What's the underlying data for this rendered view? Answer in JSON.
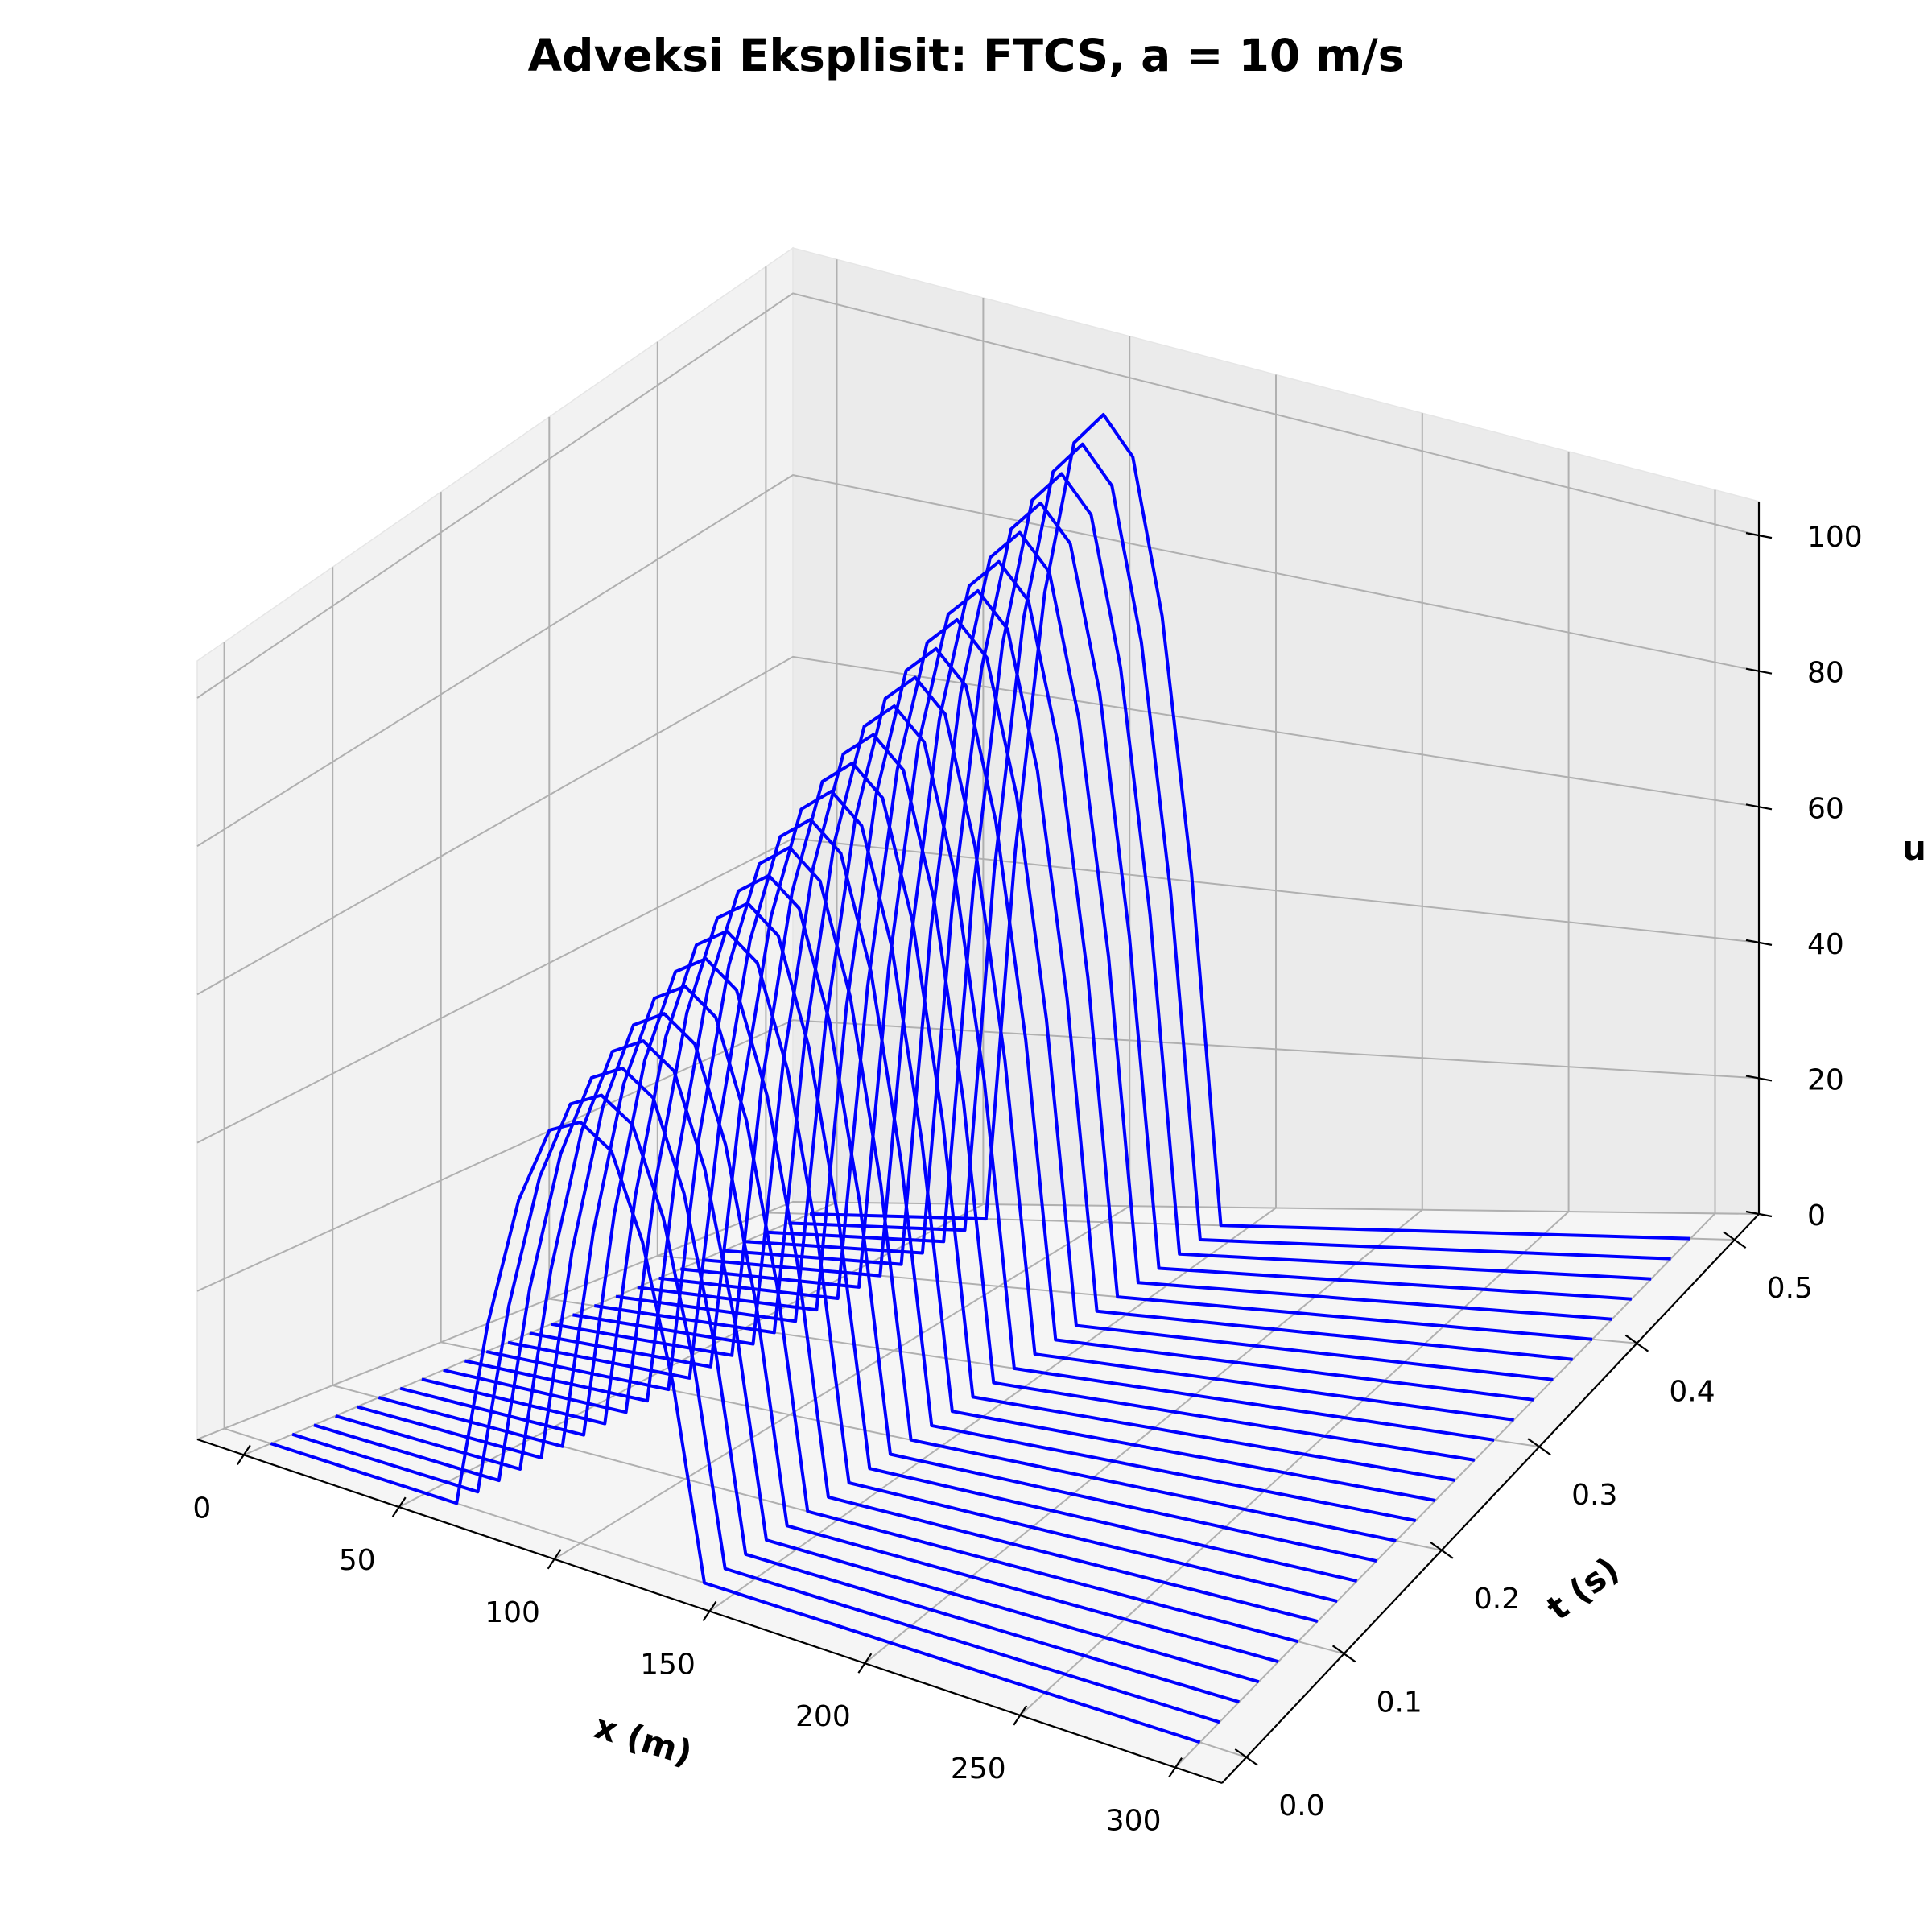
{
  "chart_data": {
    "type": "line",
    "subtype": "3d-waterfall",
    "title": "Adveksi Eksplisit: FTCS, a = 10 m/s",
    "xlabel": "x (m)",
    "ylabel": "t (s)",
    "zlabel": "u",
    "x_ticks": [
      "0",
      "50",
      "100",
      "150",
      "200",
      "250",
      "300"
    ],
    "t_ticks": [
      "0.0",
      "0.1",
      "0.2",
      "0.3",
      "0.4",
      "0.5"
    ],
    "u_ticks": [
      "0",
      "20",
      "40",
      "60",
      "80",
      "100"
    ],
    "xlim": [
      -15,
      315
    ],
    "tlim": [
      -0.025,
      0.525
    ],
    "ulim": [
      0,
      105
    ],
    "grid": true,
    "series_color": "#0000ff",
    "x_values": [
      0,
      10,
      20,
      30,
      40,
      50,
      60,
      70,
      80,
      90,
      100,
      110,
      120,
      130,
      140,
      150,
      160,
      170,
      180,
      190,
      200,
      210,
      220,
      230,
      240,
      250,
      260,
      270,
      280,
      290,
      300
    ],
    "profile": {
      "shape": "parabolic pulse",
      "zero_left_of_x": 60,
      "zero_right_of_x": 140,
      "support_in_x": [
        70,
        130
      ],
      "peak_at_x": [
        95,
        105
      ],
      "peak_u_at_t0": 57,
      "peak_u_at_t_end": 98
    },
    "t_values": [
      0.0,
      0.02,
      0.04,
      0.06,
      0.08,
      0.1,
      0.12,
      0.14,
      0.16,
      0.18,
      0.2,
      0.22,
      0.24,
      0.26,
      0.28,
      0.3,
      0.32,
      0.34,
      0.36,
      0.38,
      0.4,
      0.42,
      0.44,
      0.46,
      0.48,
      0.5
    ]
  }
}
